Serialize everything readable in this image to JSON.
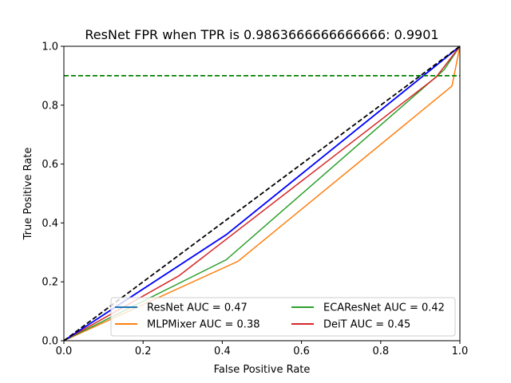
{
  "chart_data": {
    "type": "line",
    "title": "ResNet FPR when TPR is 0.9863666666666666: 0.9901",
    "xlabel": "False Positive Rate",
    "ylabel": "True Positive Rate",
    "xlim": [
      0,
      1
    ],
    "ylim": [
      0,
      1
    ],
    "xticks": [
      "0.0",
      "0.2",
      "0.4",
      "0.6",
      "0.8",
      "1.0"
    ],
    "yticks": [
      "0.0",
      "0.2",
      "0.4",
      "0.6",
      "0.8",
      "1.0"
    ],
    "grid": false,
    "legend_position": "lower-right",
    "series": [
      {
        "name": "ResNet AUC = 0.47",
        "color": "#1f77b4",
        "x": [
          0,
          0.41,
          1.0
        ],
        "y": [
          0,
          0.36,
          1.0
        ]
      },
      {
        "name": "MLPMixer AUC = 0.38",
        "color": "#ff7f0e",
        "x": [
          0,
          0.44,
          0.98,
          1.0
        ],
        "y": [
          0,
          0.27,
          0.865,
          1.0
        ]
      },
      {
        "name": "ECAResNet AUC = 0.42",
        "color": "#2ca02c",
        "x": [
          0,
          0.41,
          0.96,
          1.0
        ],
        "y": [
          0,
          0.275,
          0.92,
          1.0
        ]
      },
      {
        "name": "DeiT AUC = 0.45",
        "color": "#d62728",
        "x": [
          0,
          0.29,
          0.94,
          1.0
        ],
        "y": [
          0,
          0.22,
          0.895,
          1.0
        ]
      }
    ],
    "reference_lines": [
      {
        "color": "#0000ff",
        "style": "solid",
        "x": [
          0,
          0.41,
          1.0
        ],
        "y": [
          0,
          0.36,
          1.0
        ]
      },
      {
        "color": "#000000",
        "style": "dashed",
        "x": [
          0,
          1
        ],
        "y": [
          0,
          1
        ]
      },
      {
        "color": "#008000",
        "style": "dashed",
        "x": [
          0,
          1
        ],
        "y": [
          0.9,
          0.9
        ]
      }
    ]
  }
}
